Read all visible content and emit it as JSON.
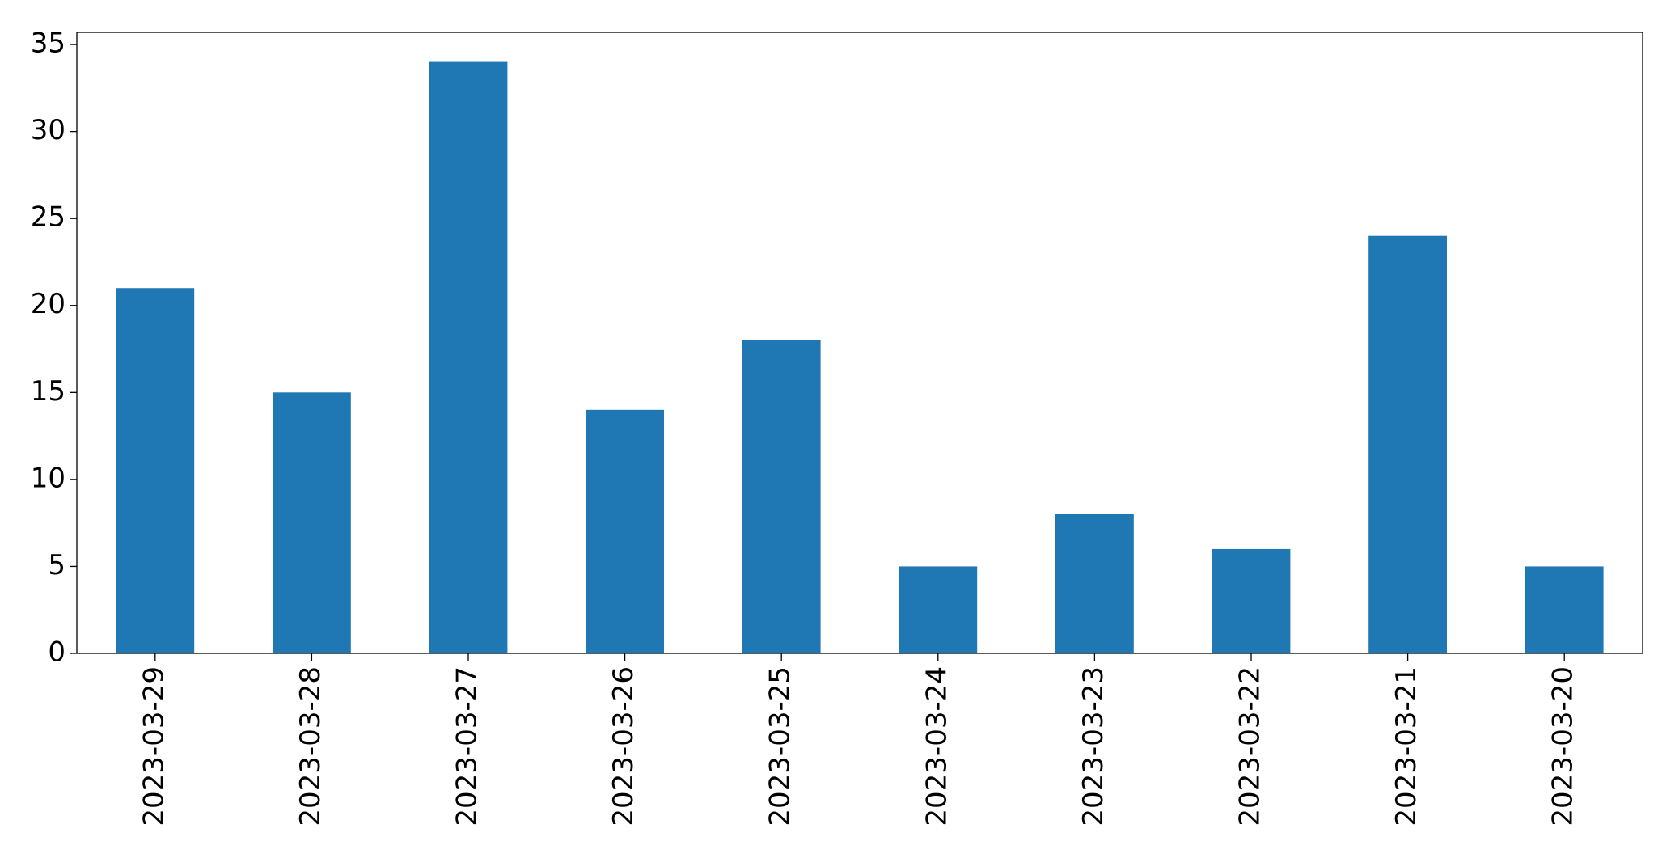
{
  "chart_data": {
    "type": "bar",
    "categories": [
      "2023-03-29",
      "2023-03-28",
      "2023-03-27",
      "2023-03-26",
      "2023-03-25",
      "2023-03-24",
      "2023-03-23",
      "2023-03-22",
      "2023-03-21",
      "2023-03-20"
    ],
    "values": [
      21,
      15,
      34,
      14,
      18,
      5,
      8,
      6,
      24,
      5
    ],
    "color": "#1f77b4",
    "ylim": [
      0,
      35.7
    ],
    "yticks": [
      0,
      5,
      10,
      15,
      20,
      25,
      30,
      35
    ],
    "grid": false
  }
}
